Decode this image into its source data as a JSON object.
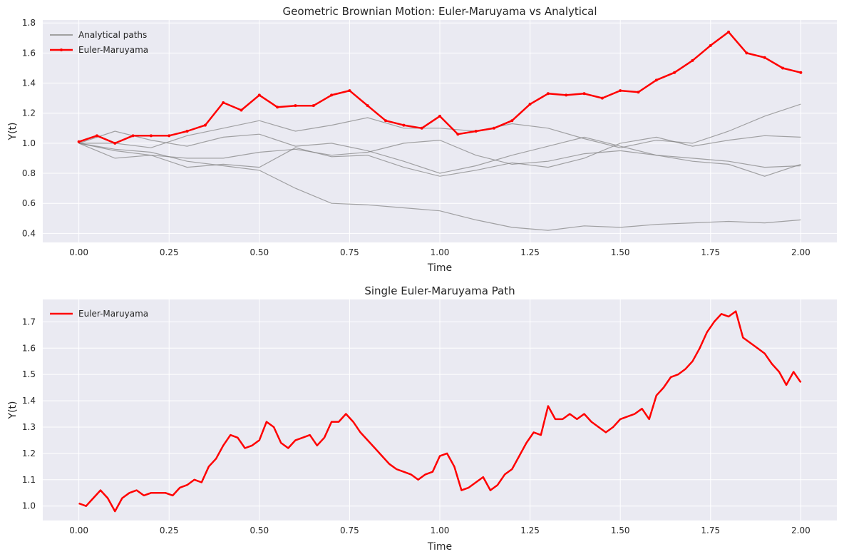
{
  "chart_data": [
    {
      "type": "line",
      "title": "Geometric Brownian Motion: Euler-Maruyama vs Analytical",
      "xlabel": "Time",
      "ylabel": "Y(t)",
      "xlim": [
        -0.1,
        2.1
      ],
      "ylim": [
        0.34,
        1.82
      ],
      "xticks": [
        "0.00",
        "0.25",
        "0.50",
        "0.75",
        "1.00",
        "1.25",
        "1.50",
        "1.75",
        "2.00"
      ],
      "yticks": [
        "0.4",
        "0.6",
        "0.8",
        "1.0",
        "1.2",
        "1.4",
        "1.6",
        "1.8"
      ],
      "grid": true,
      "legend": {
        "placement": "top-left",
        "entries": [
          "Analytical paths",
          "Euler-Maruyama"
        ]
      },
      "series": [
        {
          "name": "Analytical paths",
          "color": "#808080",
          "style": "thin-line",
          "paths": [
            {
              "x": [
                0,
                0.1,
                0.2,
                0.3,
                0.4,
                0.5,
                0.6,
                0.7,
                0.8,
                0.9,
                1.0,
                1.1,
                1.2,
                1.3,
                1.4,
                1.5,
                1.6,
                1.7,
                1.8,
                1.9,
                2.0
              ],
              "y": [
                1.0,
                0.96,
                0.94,
                0.88,
                0.85,
                0.82,
                0.7,
                0.6,
                0.59,
                0.57,
                0.55,
                0.49,
                0.44,
                0.42,
                0.45,
                0.44,
                0.46,
                0.47,
                0.48,
                0.47,
                0.49
              ]
            },
            {
              "x": [
                0,
                0.1,
                0.2,
                0.3,
                0.4,
                0.5,
                0.6,
                0.7,
                0.8,
                0.9,
                1.0,
                1.1,
                1.2,
                1.3,
                1.4,
                1.5,
                1.6,
                1.7,
                1.8,
                1.9,
                2.0
              ],
              "y": [
                1.0,
                1.0,
                0.97,
                1.05,
                1.1,
                1.15,
                1.08,
                1.12,
                1.17,
                1.1,
                1.1,
                1.08,
                1.13,
                1.1,
                1.03,
                0.97,
                1.02,
                1.0,
                1.08,
                1.18,
                1.26
              ]
            },
            {
              "x": [
                0,
                0.1,
                0.2,
                0.3,
                0.4,
                0.5,
                0.6,
                0.7,
                0.8,
                0.9,
                1.0,
                1.1,
                1.2,
                1.3,
                1.4,
                1.5,
                1.6,
                1.7,
                1.8,
                1.9,
                2.0
              ],
              "y": [
                1.0,
                1.08,
                1.02,
                0.98,
                1.04,
                1.06,
                0.98,
                1.0,
                0.95,
                0.88,
                0.8,
                0.85,
                0.92,
                0.98,
                1.04,
                0.98,
                0.92,
                0.88,
                0.86,
                0.78,
                0.86
              ]
            },
            {
              "x": [
                0,
                0.1,
                0.2,
                0.3,
                0.4,
                0.5,
                0.6,
                0.7,
                0.8,
                0.9,
                1.0,
                1.1,
                1.2,
                1.3,
                1.4,
                1.5,
                1.6,
                1.7,
                1.8,
                1.9,
                2.0
              ],
              "y": [
                1.0,
                0.95,
                0.92,
                0.9,
                0.9,
                0.94,
                0.96,
                0.92,
                0.94,
                1.0,
                1.02,
                0.92,
                0.86,
                0.88,
                0.93,
                0.95,
                0.92,
                0.9,
                0.88,
                0.84,
                0.85
              ]
            },
            {
              "x": [
                0,
                0.1,
                0.2,
                0.3,
                0.4,
                0.5,
                0.6,
                0.7,
                0.8,
                0.9,
                1.0,
                1.1,
                1.2,
                1.3,
                1.4,
                1.5,
                1.6,
                1.7,
                1.8,
                1.9,
                2.0
              ],
              "y": [
                1.0,
                0.9,
                0.92,
                0.84,
                0.86,
                0.84,
                0.97,
                0.91,
                0.92,
                0.84,
                0.78,
                0.82,
                0.87,
                0.84,
                0.9,
                1.0,
                1.04,
                0.98,
                1.02,
                1.05,
                1.04
              ]
            }
          ]
        },
        {
          "name": "Euler-Maruyama",
          "color": "#ff0000",
          "style": "thick-line-with-markers",
          "x": [
            0,
            0.05,
            0.1,
            0.15,
            0.2,
            0.25,
            0.3,
            0.35,
            0.4,
            0.45,
            0.5,
            0.55,
            0.6,
            0.65,
            0.7,
            0.75,
            0.8,
            0.85,
            0.9,
            0.95,
            1.0,
            1.05,
            1.1,
            1.15,
            1.2,
            1.25,
            1.3,
            1.35,
            1.4,
            1.45,
            1.5,
            1.55,
            1.6,
            1.65,
            1.7,
            1.75,
            1.8,
            1.85,
            1.9,
            1.95,
            2.0
          ],
          "y": [
            1.01,
            1.05,
            1.0,
            1.05,
            1.05,
            1.05,
            1.08,
            1.12,
            1.27,
            1.22,
            1.32,
            1.24,
            1.25,
            1.25,
            1.32,
            1.35,
            1.25,
            1.15,
            1.12,
            1.1,
            1.18,
            1.06,
            1.08,
            1.1,
            1.15,
            1.26,
            1.33,
            1.32,
            1.33,
            1.3,
            1.35,
            1.34,
            1.42,
            1.47,
            1.55,
            1.65,
            1.74,
            1.6,
            1.57,
            1.5,
            1.47
          ]
        }
      ]
    },
    {
      "type": "line",
      "title": "Single Euler-Maruyama Path",
      "xlabel": "Time",
      "ylabel": "Y(t)",
      "xlim": [
        -0.1,
        2.1
      ],
      "ylim": [
        0.945,
        1.785
      ],
      "xticks": [
        "0.00",
        "0.25",
        "0.50",
        "0.75",
        "1.00",
        "1.25",
        "1.50",
        "1.75",
        "2.00"
      ],
      "yticks": [
        "1.0",
        "1.1",
        "1.2",
        "1.3",
        "1.4",
        "1.5",
        "1.6",
        "1.7"
      ],
      "grid": true,
      "legend": {
        "placement": "top-left",
        "entries": [
          "Euler-Maruyama"
        ]
      },
      "series": [
        {
          "name": "Euler-Maruyama",
          "color": "#ff0000",
          "style": "thick-line",
          "x": [
            0,
            0.02,
            0.04,
            0.06,
            0.08,
            0.1,
            0.12,
            0.14,
            0.16,
            0.18,
            0.2,
            0.22,
            0.24,
            0.26,
            0.28,
            0.3,
            0.32,
            0.34,
            0.36,
            0.38,
            0.4,
            0.42,
            0.44,
            0.46,
            0.48,
            0.5,
            0.52,
            0.54,
            0.56,
            0.58,
            0.6,
            0.62,
            0.64,
            0.66,
            0.68,
            0.7,
            0.72,
            0.74,
            0.76,
            0.78,
            0.8,
            0.82,
            0.84,
            0.86,
            0.88,
            0.9,
            0.92,
            0.94,
            0.96,
            0.98,
            1.0,
            1.02,
            1.04,
            1.06,
            1.08,
            1.1,
            1.12,
            1.14,
            1.16,
            1.18,
            1.2,
            1.22,
            1.24,
            1.26,
            1.28,
            1.3,
            1.32,
            1.34,
            1.36,
            1.38,
            1.4,
            1.42,
            1.44,
            1.46,
            1.48,
            1.5,
            1.52,
            1.54,
            1.56,
            1.58,
            1.6,
            1.62,
            1.64,
            1.66,
            1.68,
            1.7,
            1.72,
            1.74,
            1.76,
            1.78,
            1.8,
            1.82,
            1.84,
            1.86,
            1.88,
            1.9,
            1.92,
            1.94,
            1.96,
            1.98,
            2.0
          ],
          "y": [
            1.01,
            1.0,
            1.03,
            1.06,
            1.03,
            0.98,
            1.03,
            1.05,
            1.06,
            1.04,
            1.05,
            1.05,
            1.05,
            1.04,
            1.07,
            1.08,
            1.1,
            1.09,
            1.15,
            1.18,
            1.23,
            1.27,
            1.26,
            1.22,
            1.23,
            1.25,
            1.32,
            1.3,
            1.24,
            1.22,
            1.25,
            1.26,
            1.27,
            1.23,
            1.26,
            1.32,
            1.32,
            1.35,
            1.32,
            1.28,
            1.25,
            1.22,
            1.19,
            1.16,
            1.14,
            1.13,
            1.12,
            1.1,
            1.12,
            1.13,
            1.19,
            1.2,
            1.15,
            1.06,
            1.07,
            1.09,
            1.11,
            1.06,
            1.08,
            1.12,
            1.14,
            1.19,
            1.24,
            1.28,
            1.27,
            1.38,
            1.33,
            1.33,
            1.35,
            1.33,
            1.35,
            1.32,
            1.3,
            1.28,
            1.3,
            1.33,
            1.34,
            1.35,
            1.37,
            1.33,
            1.42,
            1.45,
            1.49,
            1.5,
            1.52,
            1.55,
            1.6,
            1.66,
            1.7,
            1.73,
            1.72,
            1.74,
            1.64,
            1.62,
            1.6,
            1.58,
            1.54,
            1.51,
            1.46,
            1.51,
            1.47
          ]
        }
      ]
    }
  ]
}
